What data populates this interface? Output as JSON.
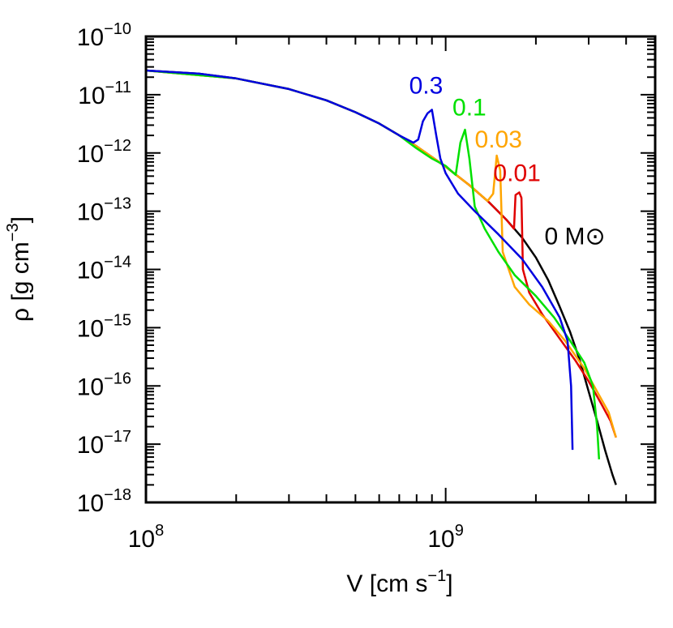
{
  "chart_data": {
    "type": "line",
    "xlabel": "V [cm s",
    "xlabel_exp": "−1",
    "xlabel_close": "]",
    "ylabel": "ρ [g cm",
    "ylabel_exp": "−3",
    "ylabel_close": "]",
    "x_scale": "log",
    "y_scale": "log",
    "xlim": [
      100000000.0,
      5000000000.0
    ],
    "ylim": [
      1e-18,
      1e-10
    ],
    "grid": false,
    "x_ticks": [
      {
        "value": 100000000.0,
        "base": "10",
        "exp": "8"
      },
      {
        "value": 1000000000.0,
        "base": "10",
        "exp": "9"
      }
    ],
    "y_ticks": [
      {
        "value": 1e-10,
        "base": "10",
        "exp": "−10"
      },
      {
        "value": 1e-11,
        "base": "10",
        "exp": "−11"
      },
      {
        "value": 1e-12,
        "base": "10",
        "exp": "−12"
      },
      {
        "value": 1e-13,
        "base": "10",
        "exp": "−13"
      },
      {
        "value": 1e-14,
        "base": "10",
        "exp": "−14"
      },
      {
        "value": 1e-15,
        "base": "10",
        "exp": "−15"
      },
      {
        "value": 1e-16,
        "base": "10",
        "exp": "−16"
      },
      {
        "value": 1e-17,
        "base": "10",
        "exp": "−17"
      },
      {
        "value": 1e-18,
        "base": "10",
        "exp": "−18"
      }
    ],
    "series": [
      {
        "name": "0 M⊙",
        "color": "#000000",
        "label_at": [
          2700000000.0,
          2.7e-14
        ],
        "points": [
          [
            100000000.0,
            2.6e-11
          ],
          [
            150000000.0,
            2.3e-11
          ],
          [
            200000000.0,
            1.9e-11
          ],
          [
            300000000.0,
            1.25e-11
          ],
          [
            400000000.0,
            8e-12
          ],
          [
            500000000.0,
            5e-12
          ],
          [
            600000000.0,
            3.2e-12
          ],
          [
            700000000.0,
            2e-12
          ],
          [
            800000000.0,
            1.3e-12
          ],
          [
            900000000.0,
            8.5e-13
          ],
          [
            1000000000.0,
            5.8e-13
          ],
          [
            1200000000.0,
            2.8e-13
          ],
          [
            1400000000.0,
            1.4e-13
          ],
          [
            1600000000.0,
            7e-14
          ],
          [
            1800000000.0,
            3.5e-14
          ],
          [
            2000000000.0,
            1.6e-14
          ],
          [
            2200000000.0,
            6.5e-15
          ],
          [
            2400000000.0,
            2.3e-15
          ],
          [
            2600000000.0,
            8.5e-16
          ],
          [
            2800000000.0,
            2.8e-16
          ],
          [
            3000000000.0,
            8e-17
          ],
          [
            3200000000.0,
            2.5e-17
          ],
          [
            3400000000.0,
            8e-18
          ],
          [
            3600000000.0,
            3e-18
          ],
          [
            3700000000.0,
            2e-18
          ]
        ]
      },
      {
        "name": "0.01",
        "color": "#e00000",
        "label_at": [
          1730000000.0,
          3.3e-13
        ],
        "points": [
          [
            100000000.0,
            2.6e-11
          ],
          [
            200000000.0,
            1.9e-11
          ],
          [
            300000000.0,
            1.25e-11
          ],
          [
            400000000.0,
            8e-12
          ],
          [
            500000000.0,
            5e-12
          ],
          [
            600000000.0,
            3.2e-12
          ],
          [
            700000000.0,
            2e-12
          ],
          [
            800000000.0,
            1.3e-12
          ],
          [
            900000000.0,
            8.5e-13
          ],
          [
            1000000000.0,
            5.8e-13
          ],
          [
            1200000000.0,
            2.8e-13
          ],
          [
            1400000000.0,
            1.4e-13
          ],
          [
            1600000000.0,
            7e-14
          ],
          [
            1690000000.0,
            5e-14
          ],
          [
            1710000000.0,
            1.9e-13
          ],
          [
            1760000000.0,
            2.1e-13
          ],
          [
            1790000000.0,
            1.7e-13
          ],
          [
            1810000000.0,
            1e-14
          ],
          [
            1900000000.0,
            4e-15
          ],
          [
            2100000000.0,
            1.7e-15
          ],
          [
            2400000000.0,
            6.5e-16
          ],
          [
            2700000000.0,
            2.8e-16
          ],
          [
            3000000000.0,
            1.2e-16
          ],
          [
            3300000000.0,
            5e-17
          ],
          [
            3550000000.0,
            2.5e-17
          ],
          [
            3700000000.0,
            1.3e-17
          ]
        ]
      },
      {
        "name": "0.03",
        "color": "#ffa500",
        "label_at": [
          1500000000.0,
          1.25e-12
        ],
        "points": [
          [
            100000000.0,
            2.6e-11
          ],
          [
            200000000.0,
            1.9e-11
          ],
          [
            300000000.0,
            1.25e-11
          ],
          [
            400000000.0,
            8e-12
          ],
          [
            500000000.0,
            5e-12
          ],
          [
            600000000.0,
            3.2e-12
          ],
          [
            700000000.0,
            2e-12
          ],
          [
            800000000.0,
            1.3e-12
          ],
          [
            900000000.0,
            8.5e-13
          ],
          [
            1000000000.0,
            5.8e-13
          ],
          [
            1200000000.0,
            2.8e-13
          ],
          [
            1380000000.0,
            1.5e-13
          ],
          [
            1440000000.0,
            2e-13
          ],
          [
            1480000000.0,
            9e-13
          ],
          [
            1520000000.0,
            5e-13
          ],
          [
            1550000000.0,
            2e-14
          ],
          [
            1700000000.0,
            5e-15
          ],
          [
            1900000000.0,
            2.5e-15
          ],
          [
            2200000000.0,
            1.3e-15
          ],
          [
            2500000000.0,
            6e-16
          ],
          [
            2900000000.0,
            2e-16
          ],
          [
            3200000000.0,
            8e-17
          ],
          [
            3500000000.0,
            3.5e-17
          ],
          [
            3700000000.0,
            1.3e-17
          ]
        ]
      },
      {
        "name": "0.1",
        "color": "#00e000",
        "label_at": [
          1200000000.0,
          4.4e-12
        ],
        "points": [
          [
            100000000.0,
            2.6e-11
          ],
          [
            200000000.0,
            1.9e-11
          ],
          [
            300000000.0,
            1.25e-11
          ],
          [
            400000000.0,
            8e-12
          ],
          [
            500000000.0,
            5e-12
          ],
          [
            600000000.0,
            3.2e-12
          ],
          [
            700000000.0,
            2e-12
          ],
          [
            800000000.0,
            1.2e-12
          ],
          [
            900000000.0,
            8e-13
          ],
          [
            1000000000.0,
            6e-13
          ],
          [
            1080000000.0,
            4.2e-13
          ],
          [
            1120000000.0,
            1.5e-12
          ],
          [
            1160000000.0,
            2.5e-12
          ],
          [
            1200000000.0,
            8e-13
          ],
          [
            1250000000.0,
            1.2e-13
          ],
          [
            1350000000.0,
            5e-14
          ],
          [
            1500000000.0,
            2e-14
          ],
          [
            1700000000.0,
            8e-15
          ],
          [
            2000000000.0,
            3.5e-15
          ],
          [
            2300000000.0,
            1.5e-15
          ],
          [
            2600000000.0,
            6e-16
          ],
          [
            2900000000.0,
            2.5e-16
          ],
          [
            3100000000.0,
            1e-16
          ],
          [
            3200000000.0,
            2e-17
          ],
          [
            3250000000.0,
            5.5e-18
          ]
        ]
      },
      {
        "name": "0.3",
        "color": "#0000e0",
        "label_at": [
          860000000.0,
          1.05e-11
        ],
        "points": [
          [
            100000000.0,
            2.6e-11
          ],
          [
            150000000.0,
            2.3e-11
          ],
          [
            200000000.0,
            1.9e-11
          ],
          [
            300000000.0,
            1.25e-11
          ],
          [
            400000000.0,
            8e-12
          ],
          [
            500000000.0,
            5e-12
          ],
          [
            600000000.0,
            3.2e-12
          ],
          [
            700000000.0,
            2e-12
          ],
          [
            780000000.0,
            1.5e-12
          ],
          [
            810000000.0,
            1.7e-12
          ],
          [
            840000000.0,
            3.5e-12
          ],
          [
            870000000.0,
            4.8e-12
          ],
          [
            900000000.0,
            5.5e-12
          ],
          [
            930000000.0,
            2e-12
          ],
          [
            960000000.0,
            8e-13
          ],
          [
            1000000000.0,
            4.5e-13
          ],
          [
            1100000000.0,
            2e-13
          ],
          [
            1250000000.0,
            1e-13
          ],
          [
            1500000000.0,
            4e-14
          ],
          [
            1800000000.0,
            1.5e-14
          ],
          [
            2100000000.0,
            5e-15
          ],
          [
            2400000000.0,
            1.5e-15
          ],
          [
            2550000000.0,
            6e-16
          ],
          [
            2620000000.0,
            1e-16
          ],
          [
            2650000000.0,
            8e-18
          ]
        ]
      }
    ]
  }
}
